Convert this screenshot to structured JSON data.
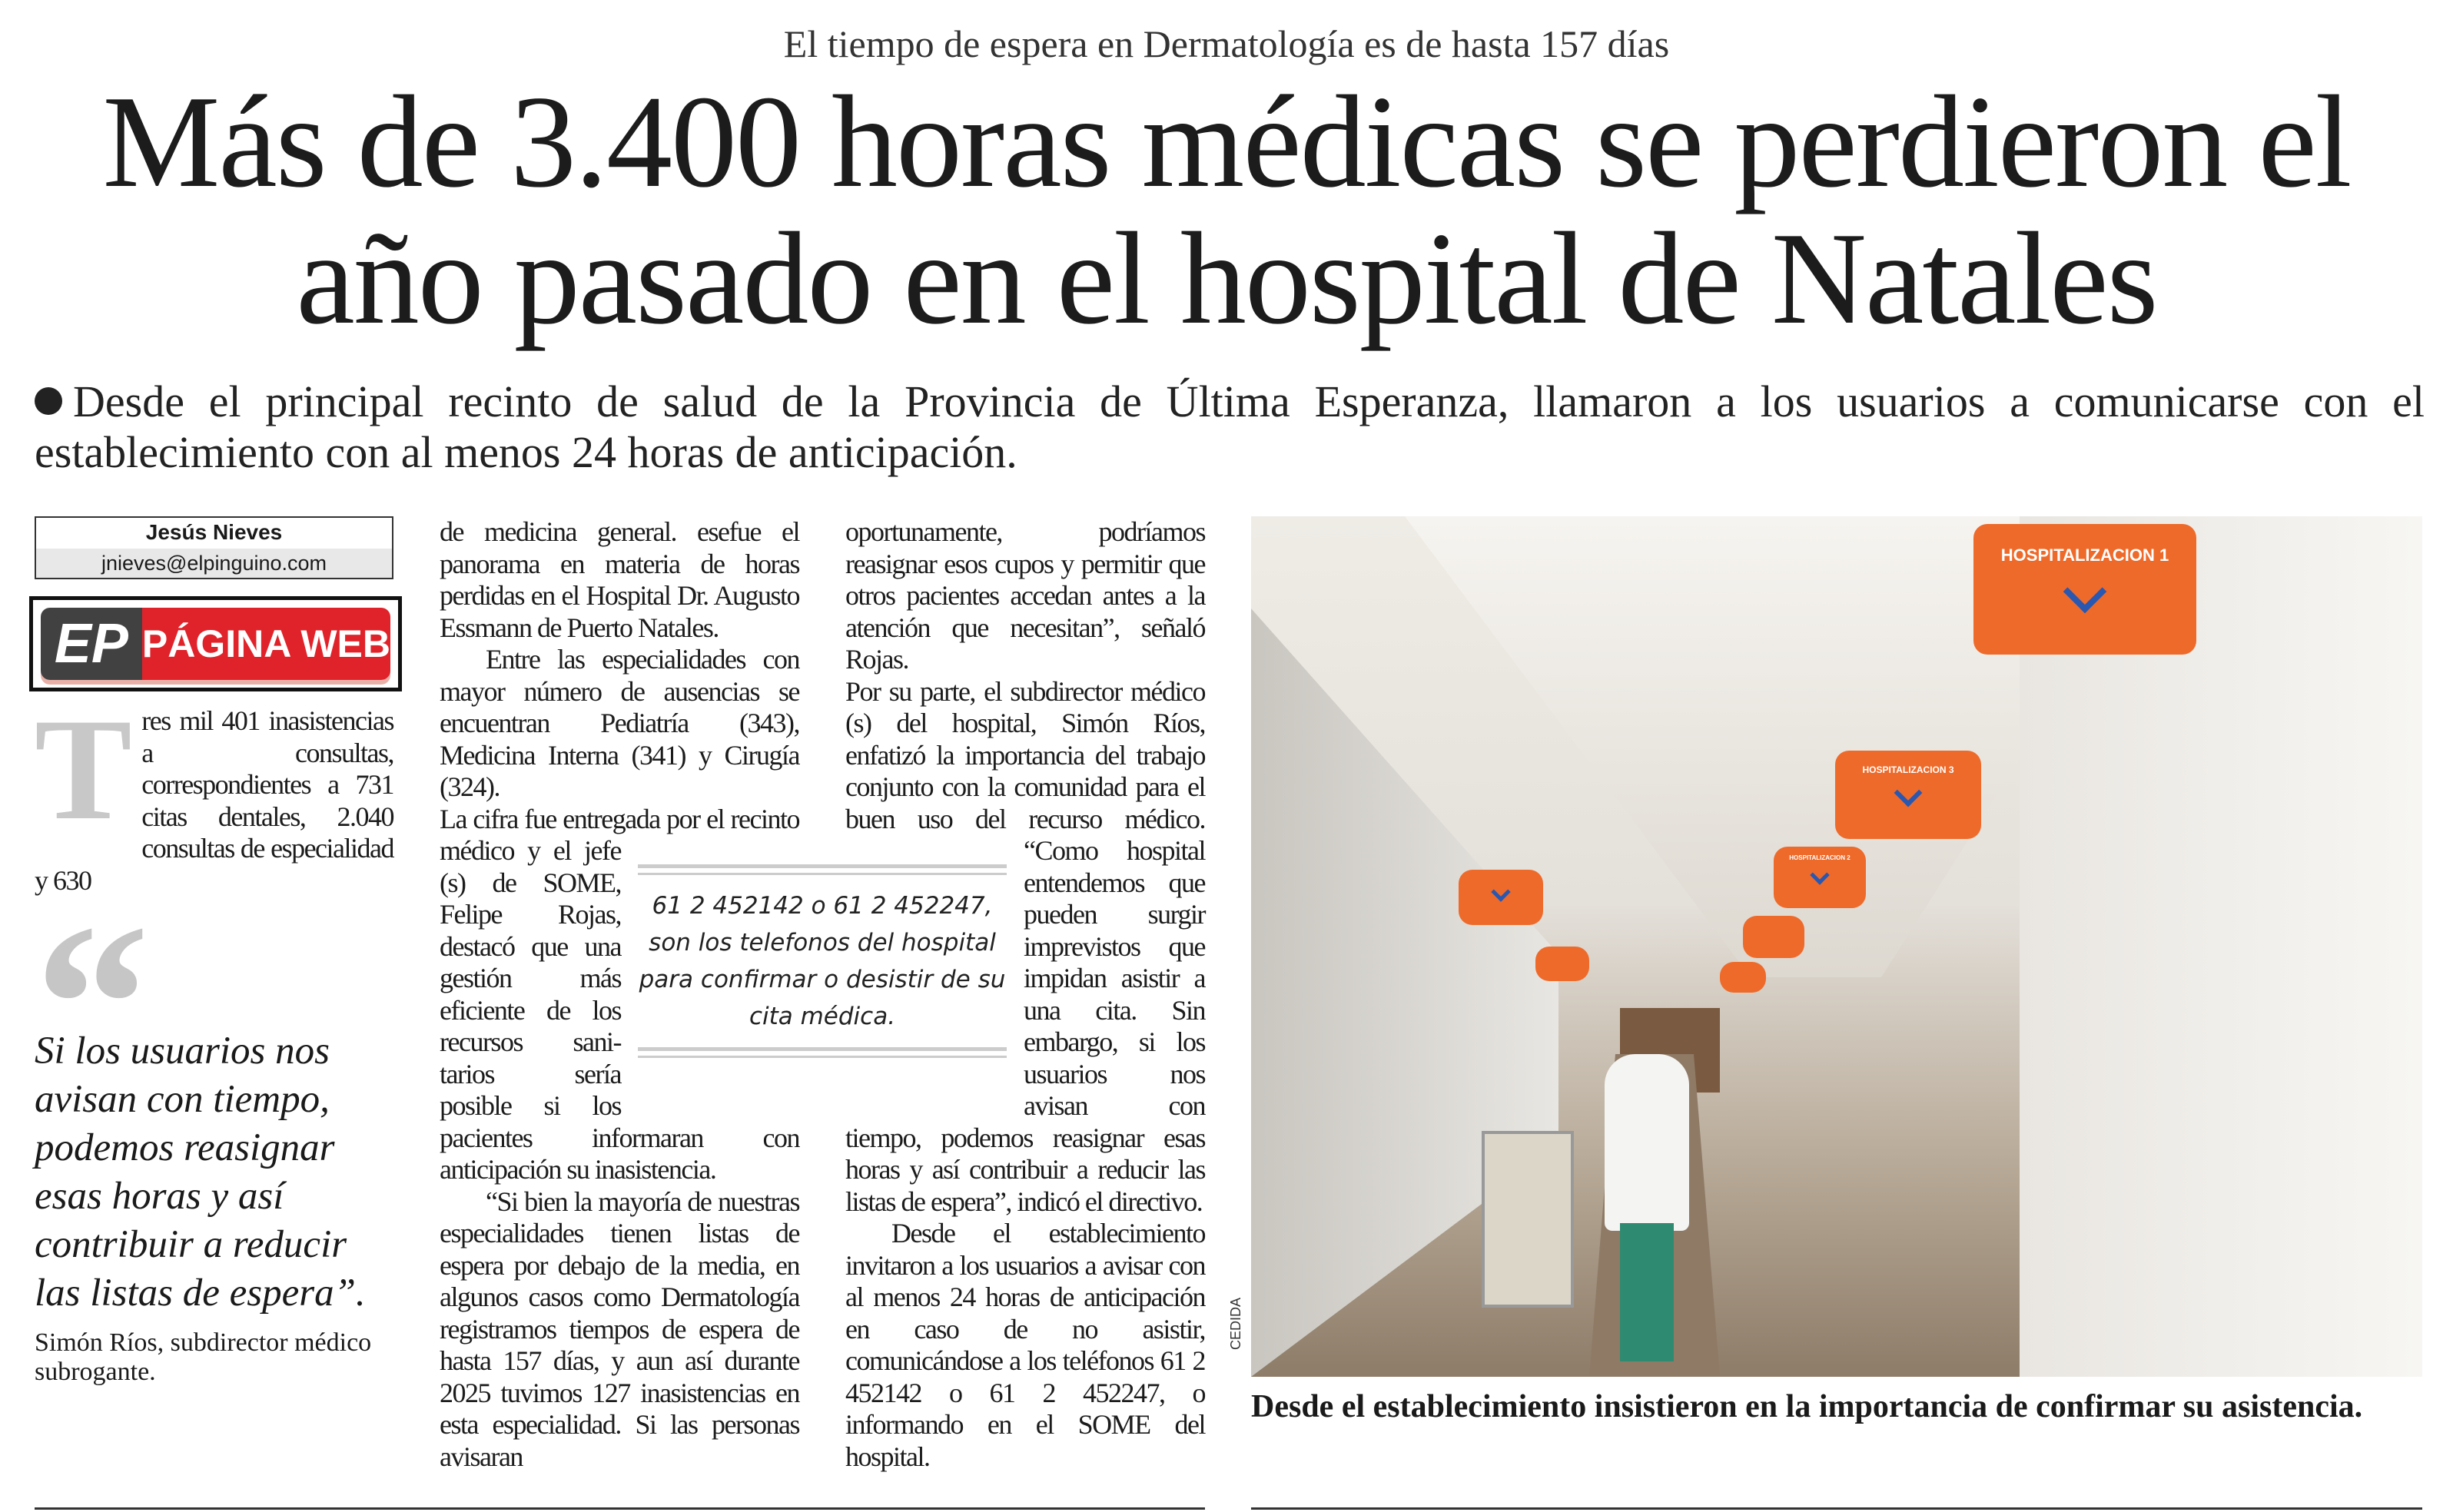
{
  "article": {
    "kicker": "El tiempo de espera en Dermatología es de hasta 157 días",
    "headline": "Más de 3.400 horas médicas se perdieron el año pasado en el hospital de Natales",
    "dek": "Desde el principal recinto de salud de la Provincia de Última Esperanza, llamaron a los usuarios a comunicarse con el establecimiento con al menos 24 horas de anticipación.",
    "byline": {
      "author": "Jesús Nieves",
      "email": "jnieves@elpinguino.com"
    },
    "badge": {
      "logo": "EP",
      "label": "PÁGINA WEB",
      "colors": {
        "left": "#414141",
        "right": "#e0232a"
      }
    },
    "dropcap": "T",
    "col1_lead": "res mil 401 inasistencias a consultas, correspondientes a 731 citas dentales, 2.040 consultas de especialidad y 630",
    "col2_top": [
      "de medicina general. esefue el panorama en materia de horas perdidas en el Hospital Dr. Augusto Essmann de Puerto Natales.",
      "Entre las especialidades con mayor número de ausencias se encuentran Pediatría (343), Medicina Interna (341) y Cirugía (324).",
      "La cifra fue entregada por"
    ],
    "col2_mid": "el recinto médico y el jefe (s) de SOME, Felipe Rojas, destacó que una gestión más eficiente de los recursos sani-",
    "col2_bottom": [
      "tarios sería posible si los pacientes informaran con anticipación su inasistencia.",
      "“Si bien la mayoría de nuestras especialidades tienen listas de espera por debajo de la media, en algunos casos como Dermatología registramos tiempos de espera de hasta 157 días, y aun así durante 2025 tuvimos 127 inasistencias en esta especialidad. Si las personas avisaran"
    ],
    "col3_top": [
      "oportunamente, podríamos reasignar esos cupos y permitir que otros pacientes accedan antes a la atención que necesitan”, señaló Rojas.",
      "Por su parte, el subdirector médico (s) del hospital, Simón Ríos, enfatizó la importancia del trabajo conjunto con la comunidad para el buen uso del recurso"
    ],
    "col3_mid": "médico. “Como hospital entendemos que pueden surgir imprevistos que impidan asistir a una cita. Sin embargo, si",
    "col3_bottom": [
      "los usuarios nos avisan con tiempo, podemos reasignar esas horas y así contribuir a reducir las listas de espera”, indicó el directivo.",
      "Desde el establecimiento invitaron a los usuarios a avisar con al menos 24 horas de anticipación en caso de no asistir, comunicándose a los teléfonos 61 2 452142 o 61 2 452247, o informando en el SOME del hospital."
    ],
    "highlight": "61 2 452142 o 61 2 452247, son los telefonos del hospital para confirmar o desistir de su cita médica.",
    "pullquote": {
      "text": "Si los usuarios nos avisan con tiempo, podemos reasignar esas horas y así contribuir a reducir las listas de espera”.",
      "attribution": "Simón Ríos, subdirector médico subrogante."
    },
    "photo": {
      "credit": "CEDIDA",
      "signs": [
        "HOSPITALIZACION 1",
        "HOSPITALIZACION 2",
        "HOSPITALIZACION 3"
      ],
      "sign_color": "#ee6a2a"
    },
    "caption": "Desde el establecimiento insistieron en la importancia de confirmar su asistencia."
  }
}
